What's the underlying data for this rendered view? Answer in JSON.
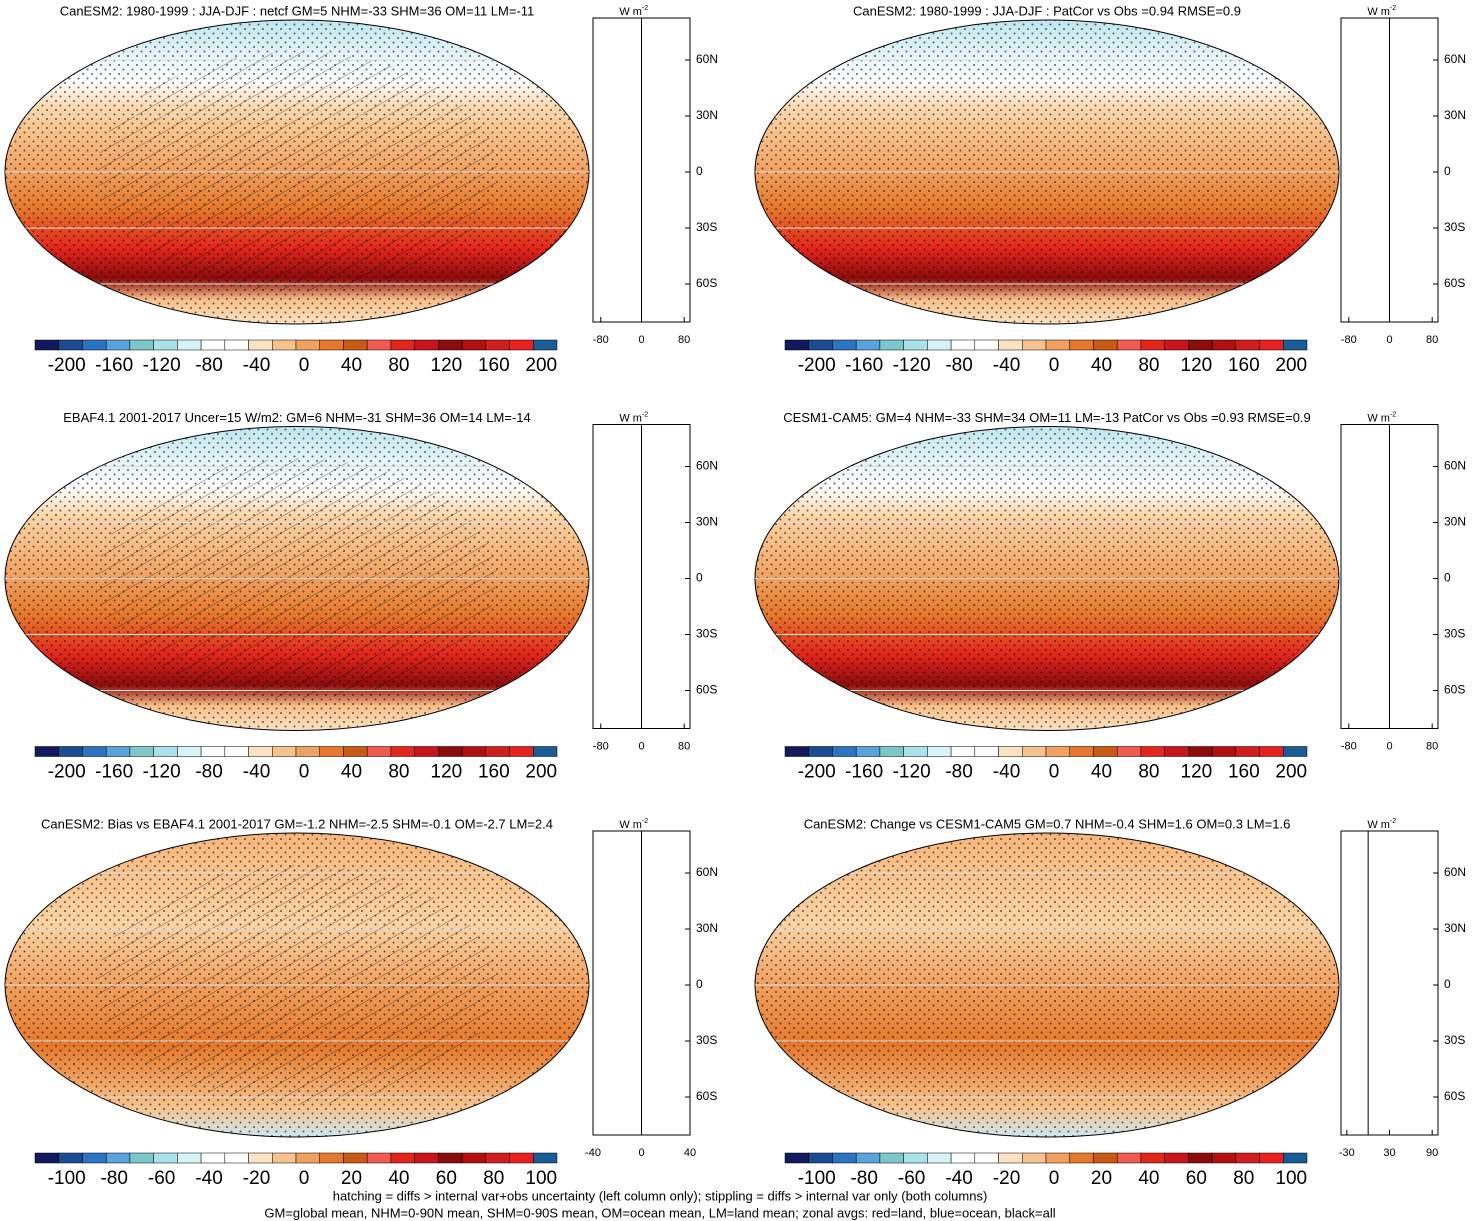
{
  "panels": [
    {
      "title": "CanESM2: 1980-1999 : JJA-DJF : netcf GM=5 NHM=-33 SHM=36 OM=11 LM=-11",
      "colorbar_labels": [
        "-200",
        "-160",
        "-120",
        "-80",
        "-40",
        "0",
        "40",
        "80",
        "120",
        "160",
        "200"
      ],
      "zonal": {
        "unit": {
          "base": "W m",
          "exp": "-2"
        },
        "x_labels": [
          "-80",
          "0",
          "80"
        ],
        "lat_labels": [
          "60N",
          "30N",
          "0",
          "30S",
          "60S"
        ]
      }
    },
    {
      "title": "CanESM2: 1980-1999 : JJA-DJF : PatCor vs Obs =0.94 RMSE=0.9",
      "colorbar_labels": [
        "-200",
        "-160",
        "-120",
        "-80",
        "-40",
        "0",
        "40",
        "80",
        "120",
        "160",
        "200"
      ],
      "zonal": {
        "unit": {
          "base": "W m",
          "exp": "-2"
        },
        "x_labels": [
          "-80",
          "0",
          "80"
        ],
        "lat_labels": [
          "60N",
          "30N",
          "0",
          "30S",
          "60S"
        ]
      }
    },
    {
      "title": "EBAF4.1 2001-2017 Uncer=15 W/m2: GM=6 NHM=-31 SHM=36 OM=14 LM=-14",
      "colorbar_labels": [
        "-200",
        "-160",
        "-120",
        "-80",
        "-40",
        "0",
        "40",
        "80",
        "120",
        "160",
        "200"
      ],
      "zonal": {
        "unit": {
          "base": "W m",
          "exp": "-2"
        },
        "x_labels": [
          "-80",
          "0",
          "80"
        ],
        "lat_labels": [
          "60N",
          "30N",
          "0",
          "30S",
          "60S"
        ]
      }
    },
    {
      "title": "CESM1-CAM5: GM=4 NHM=-33 SHM=34 OM=11 LM=-13 PatCor vs Obs =0.93 RMSE=0.9",
      "colorbar_labels": [
        "-200",
        "-160",
        "-120",
        "-80",
        "-40",
        "0",
        "40",
        "80",
        "120",
        "160",
        "200"
      ],
      "zonal": {
        "unit": {
          "base": "W m",
          "exp": "-2"
        },
        "x_labels": [
          "-80",
          "0",
          "80"
        ],
        "lat_labels": [
          "60N",
          "30N",
          "0",
          "30S",
          "60S"
        ]
      }
    },
    {
      "title": "CanESM2: Bias vs EBAF4.1 2001-2017 GM=-1.2 NHM=-2.5 SHM=-0.1 OM=-2.7 LM=2.4",
      "colorbar_labels": [
        "-100",
        "-80",
        "-60",
        "-40",
        "-20",
        "0",
        "20",
        "40",
        "60",
        "80",
        "100"
      ],
      "zonal": {
        "unit": {
          "base": "W m",
          "exp": "-2"
        },
        "x_labels": [
          "-40",
          "0",
          "40"
        ],
        "lat_labels": [
          "60N",
          "30N",
          "0",
          "30S",
          "60S"
        ]
      }
    },
    {
      "title": "CanESM2: Change vs CESM1-CAM5 GM=0.7 NHM=-0.4 SHM=1.6 OM=0.3 LM=1.6",
      "colorbar_labels": [
        "-100",
        "-80",
        "-60",
        "-40",
        "-20",
        "0",
        "20",
        "40",
        "60",
        "80",
        "100"
      ],
      "zonal": {
        "unit": {
          "base": "W m",
          "exp": "-2"
        },
        "x_labels": [
          "-30",
          "30",
          "90"
        ],
        "lat_labels": [
          "60N",
          "30N",
          "0",
          "30S",
          "60S"
        ]
      }
    }
  ],
  "footer": [
    "hatching = diffs > internal var+obs uncertainty (left column only); stippling = diffs > internal var only (both columns)",
    "GM=global mean, NHM=0-90N mean, SHM=0-90S mean, OM=ocean mean, LM=land mean; zonal avgs: red=land, blue=ocean, black=all"
  ]
}
